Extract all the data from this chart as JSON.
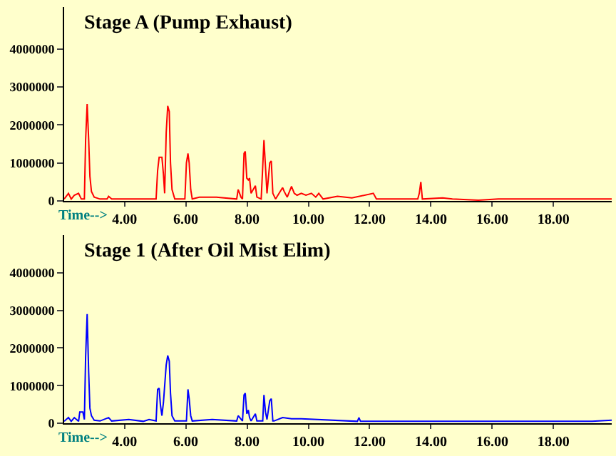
{
  "chart_data": [
    {
      "type": "line",
      "title": "Stage A (Pump Exhaust)",
      "xlabel": "Time-->",
      "x": [
        2.03,
        2.17,
        2.26,
        2.36,
        2.5,
        2.59,
        2.69,
        2.73,
        2.78,
        2.83,
        2.87,
        2.92,
        3.01,
        3.2,
        3.43,
        3.48,
        3.58,
        5.03,
        5.08,
        5.13,
        5.22,
        5.27,
        5.31,
        5.36,
        5.41,
        5.46,
        5.5,
        5.55,
        5.64,
        5.97,
        6.02,
        6.07,
        6.11,
        6.16,
        6.21,
        6.44,
        7.0,
        7.66,
        7.71,
        7.8,
        7.85,
        7.9,
        7.94,
        7.99,
        8.04,
        8.08,
        8.13,
        8.27,
        8.32,
        8.46,
        8.51,
        8.55,
        8.6,
        8.65,
        8.74,
        8.79,
        8.84,
        8.93,
        9.16,
        9.21,
        9.31,
        9.45,
        9.54,
        9.63,
        9.77,
        9.92,
        10.1,
        10.24,
        10.34,
        10.48,
        10.95,
        11.42,
        12.12,
        12.22,
        13.57,
        13.62,
        13.67,
        13.72,
        14.38,
        14.7,
        15.55,
        16.2,
        19.9
      ],
      "series": [
        {
          "color": "#ff0000",
          "values": [
            50000,
            200000,
            50000,
            150000,
            200000,
            50000,
            50000,
            1600000,
            2550000,
            1600000,
            650000,
            250000,
            100000,
            50000,
            50000,
            120000,
            50000,
            50000,
            800000,
            1150000,
            1150000,
            700000,
            200000,
            1800000,
            2500000,
            2350000,
            1000000,
            300000,
            50000,
            50000,
            1000000,
            1250000,
            1000000,
            300000,
            50000,
            100000,
            100000,
            50000,
            300000,
            100000,
            50000,
            1250000,
            1300000,
            600000,
            550000,
            600000,
            200000,
            400000,
            100000,
            50000,
            900000,
            1600000,
            900000,
            200000,
            1000000,
            1050000,
            200000,
            50000,
            350000,
            250000,
            100000,
            380000,
            200000,
            150000,
            200000,
            150000,
            200000,
            100000,
            200000,
            50000,
            120000,
            80000,
            200000,
            50000,
            50000,
            200000,
            500000,
            50000,
            80000,
            50000,
            20000,
            50000,
            50000
          ]
        }
      ],
      "xlim": [
        2.03,
        19.9
      ],
      "ylim": [
        0,
        5100000
      ],
      "xticks": [
        {
          "value": 4,
          "label": "4.00"
        },
        {
          "value": 6,
          "label": "6.00"
        },
        {
          "value": 8,
          "label": "8.00"
        },
        {
          "value": 10,
          "label": "10.00"
        },
        {
          "value": 12,
          "label": "12.00"
        },
        {
          "value": 14,
          "label": "14.00"
        },
        {
          "value": 16,
          "label": "16.00"
        },
        {
          "value": 18,
          "label": "18.00"
        }
      ],
      "yticks": [
        0,
        1000000,
        2000000,
        3000000,
        4000000
      ],
      "grid": false
    },
    {
      "type": "line",
      "title": "Stage 1 (After Oil Mist Elim)",
      "xlabel": "Time-->",
      "x": [
        2.03,
        2.17,
        2.26,
        2.36,
        2.5,
        2.54,
        2.64,
        2.69,
        2.73,
        2.78,
        2.83,
        2.87,
        2.92,
        3.01,
        3.2,
        3.48,
        3.58,
        4.14,
        4.61,
        4.8,
        5.03,
        5.08,
        5.13,
        5.17,
        5.22,
        5.27,
        5.36,
        5.41,
        5.46,
        5.5,
        5.55,
        5.64,
        6.02,
        6.07,
        6.11,
        6.16,
        6.21,
        6.86,
        7.66,
        7.71,
        7.85,
        7.9,
        7.94,
        7.99,
        8.04,
        8.08,
        8.13,
        8.27,
        8.32,
        8.51,
        8.55,
        8.6,
        8.65,
        8.74,
        8.79,
        8.84,
        8.88,
        9.16,
        9.45,
        9.77,
        11.6,
        11.65,
        11.7,
        19.26,
        19.9
      ],
      "series": [
        {
          "color": "#0000ff",
          "values": [
            50000,
            150000,
            50000,
            150000,
            50000,
            300000,
            300000,
            100000,
            1750000,
            2900000,
            1350000,
            400000,
            200000,
            80000,
            60000,
            150000,
            60000,
            100000,
            50000,
            100000,
            60000,
            900000,
            930000,
            500000,
            200000,
            550000,
            1550000,
            1800000,
            1650000,
            800000,
            200000,
            60000,
            60000,
            900000,
            650000,
            200000,
            60000,
            100000,
            60000,
            200000,
            60000,
            750000,
            800000,
            250000,
            350000,
            150000,
            60000,
            250000,
            60000,
            60000,
            750000,
            300000,
            100000,
            600000,
            650000,
            60000,
            60000,
            150000,
            120000,
            120000,
            50000,
            150000,
            50000,
            50000,
            80000
          ]
        }
      ],
      "xlim": [
        2.03,
        19.9
      ],
      "ylim": [
        0,
        5000000
      ],
      "xticks": [
        {
          "value": 4,
          "label": "4.00"
        },
        {
          "value": 6,
          "label": "6.00"
        },
        {
          "value": 8,
          "label": "8.00"
        },
        {
          "value": 10,
          "label": "10.00"
        },
        {
          "value": 12,
          "label": "12.00"
        },
        {
          "value": 14,
          "label": "14.00"
        },
        {
          "value": 16,
          "label": "16.00"
        },
        {
          "value": 18,
          "label": "18.00"
        }
      ],
      "yticks": [
        0,
        1000000,
        2000000,
        3000000,
        4000000
      ],
      "grid": false
    }
  ]
}
